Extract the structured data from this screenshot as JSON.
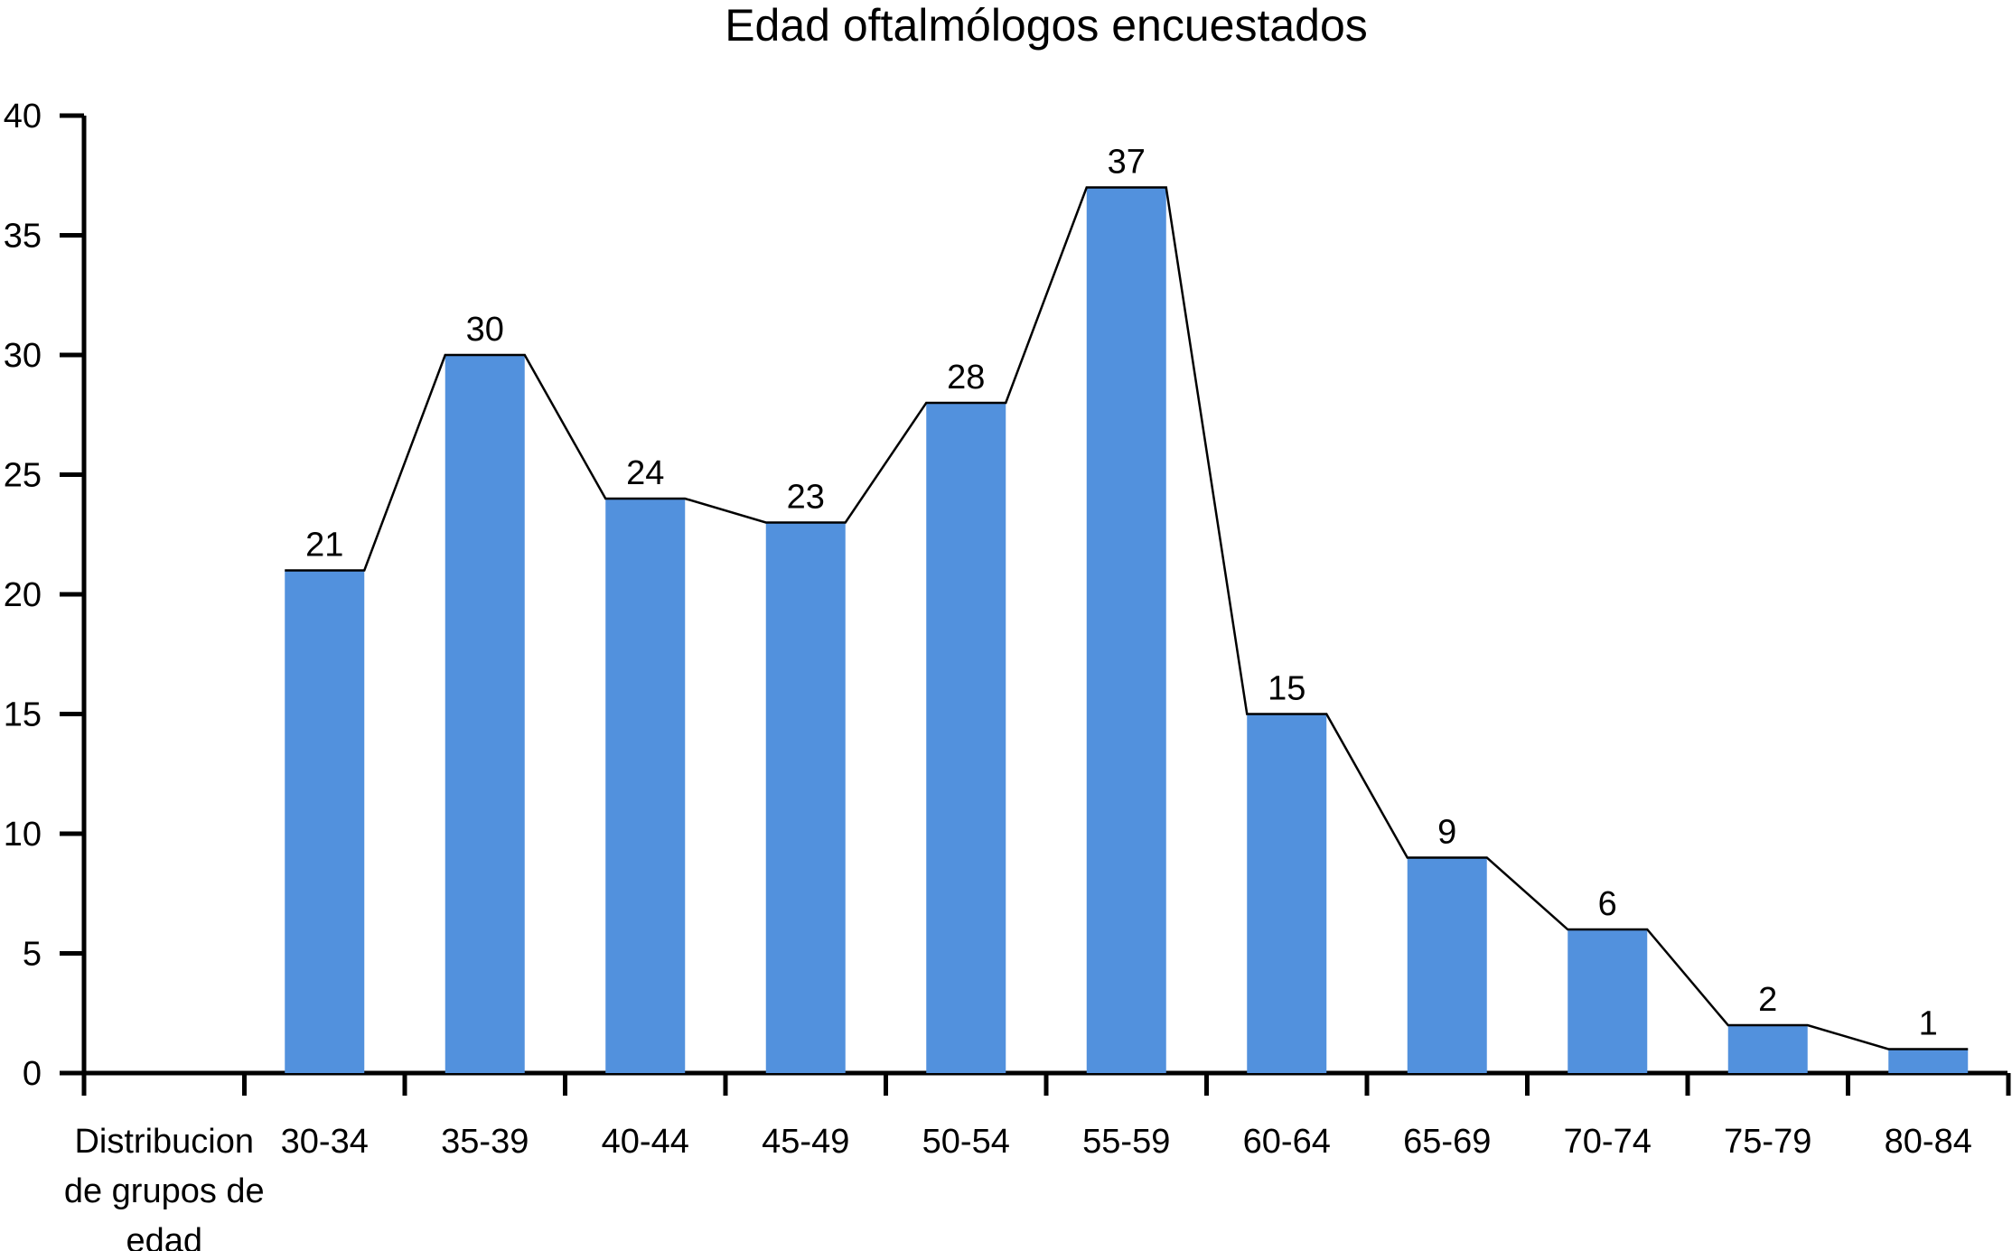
{
  "chart_data": {
    "type": "bar",
    "title": "Edad oftalmólogos encuestados",
    "xlabel": "Distribucion de grupos de edad",
    "xlabel_lines": [
      "Distribucion",
      "de grupos de",
      "edad"
    ],
    "ylabel": "",
    "ylim": [
      0,
      40
    ],
    "yticks": [
      0,
      5,
      10,
      15,
      20,
      25,
      30,
      35,
      40
    ],
    "categories": [
      "30-34",
      "35-39",
      "40-44",
      "45-49",
      "50-54",
      "55-59",
      "60-64",
      "65-69",
      "70-74",
      "75-79",
      "80-84"
    ],
    "values": [
      21,
      30,
      24,
      23,
      28,
      37,
      15,
      9,
      6,
      2,
      1
    ],
    "data_labels": [
      "21",
      "30",
      "24",
      "23",
      "28",
      "37",
      "15",
      "9",
      "6",
      "2",
      "1"
    ],
    "bar_color": "#5291dd",
    "connecting_line": true,
    "grid": false,
    "legend": "none"
  }
}
